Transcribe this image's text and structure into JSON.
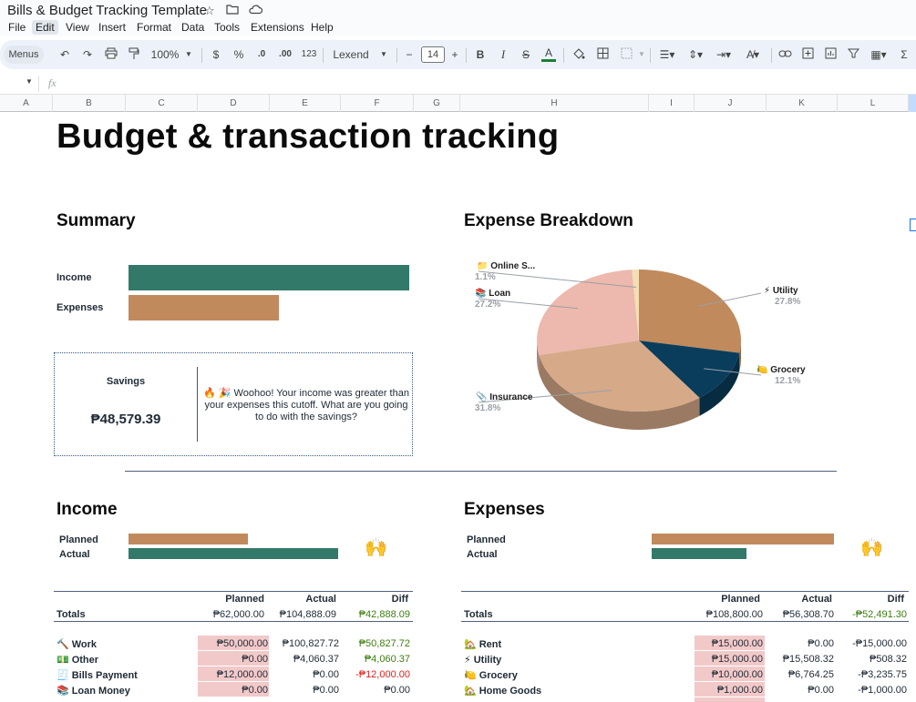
{
  "app": {
    "doc_title": "Bills & Budget Tracking Template",
    "menu": [
      "File",
      "Edit",
      "View",
      "Insert",
      "Format",
      "Data",
      "Tools",
      "Extensions",
      "Help"
    ],
    "toolbar": {
      "menus": "Menus",
      "zoom": "100%",
      "currency": "$",
      "percent": "%",
      "dec_less": ".0",
      "dec_more": ".00",
      "number_format": "123",
      "font": "Lexend",
      "font_size": "14",
      "minus": "−",
      "plus": "+",
      "bold": "B",
      "italic": "I",
      "strike": "S",
      "text_color": "A"
    },
    "formula_bar": {
      "fx": "fx"
    },
    "columns": [
      "A",
      "B",
      "C",
      "D",
      "E",
      "F",
      "G",
      "H",
      "I",
      "J",
      "K",
      "L"
    ]
  },
  "sheet": {
    "title": "Budget & transaction tracking",
    "summary": {
      "heading": "Summary",
      "income_label": "Income",
      "expenses_label": "Expenses",
      "income_fraction": 1.0,
      "expenses_fraction": 0.535
    },
    "savings": {
      "label": "Savings",
      "amount": "₱48,579.39",
      "message_emoji": "🔥 🎉",
      "message": "Woohoo! Your income was greater than your expenses this cutoff. What are you going to do with the savings?"
    },
    "expense_breakdown": {
      "heading": "Expense Breakdown",
      "chart_data": {
        "type": "pie",
        "title": "Expense Breakdown",
        "slices": [
          {
            "name": "Utility",
            "icon": "⚡",
            "pct": "27.8%",
            "value": 27.8,
            "color": "#c08a5c"
          },
          {
            "name": "Grocery",
            "icon": "🍋",
            "pct": "12.1%",
            "value": 12.1,
            "color": "#0a3d5c"
          },
          {
            "name": "Insurance",
            "icon": "📎",
            "pct": "31.8%",
            "value": 31.8,
            "color": "#d6a988"
          },
          {
            "name": "Loan",
            "icon": "📚",
            "pct": "27.2%",
            "value": 27.2,
            "color": "#edb8ad"
          },
          {
            "name": "Online S...",
            "icon": "📁",
            "pct": "1.1%",
            "value": 1.1,
            "color": "#f3dfb5"
          }
        ]
      }
    },
    "income": {
      "heading": "Income",
      "planned_label": "Planned",
      "actual_label": "Actual",
      "planned_fraction": 0.57,
      "actual_fraction": 1.0,
      "emoji": "🙌",
      "columns": [
        "Planned",
        "Actual",
        "Diff"
      ],
      "totals": {
        "label": "Totals",
        "planned": "₱62,000.00",
        "actual": "₱104,888.09",
        "diff": "₱42,888.09"
      },
      "rows": [
        {
          "icon": "🔨",
          "name": "Work",
          "planned": "₱50,000.00",
          "actual": "₱100,827.72",
          "diff": "₱50,827.72",
          "diff_sign": "pos"
        },
        {
          "icon": "💵",
          "name": "Other",
          "planned": "₱0.00",
          "actual": "₱4,060.37",
          "diff": "₱4,060.37",
          "diff_sign": "pos"
        },
        {
          "icon": "🧾",
          "name": "Bills Payment",
          "planned": "₱12,000.00",
          "actual": "₱0.00",
          "diff": "-₱12,000.00",
          "diff_sign": "neg"
        },
        {
          "icon": "📚",
          "name": "Loan Money",
          "planned": "₱0.00",
          "actual": "₱0.00",
          "diff": "₱0.00",
          "diff_sign": "zero"
        }
      ]
    },
    "expenses": {
      "heading": "Expenses",
      "planned_label": "Planned",
      "actual_label": "Actual",
      "planned_fraction": 1.0,
      "actual_fraction": 0.52,
      "emoji": "🙌",
      "columns": [
        "Planned",
        "Actual",
        "Diff"
      ],
      "totals": {
        "label": "Totals",
        "planned": "₱108,800.00",
        "actual": "₱56,308.70",
        "diff": "-₱52,491.30"
      },
      "rows": [
        {
          "icon": "🏡",
          "name": "Rent",
          "planned": "₱15,000.00",
          "actual": "₱0.00",
          "diff": "-₱15,000.00"
        },
        {
          "icon": "⚡",
          "name": "Utility",
          "planned": "₱15,000.00",
          "actual": "₱15,508.32",
          "diff": "₱508.32"
        },
        {
          "icon": "🍋",
          "name": "Grocery",
          "planned": "₱10,000.00",
          "actual": "₱6,764.25",
          "diff": "-₱3,235.75"
        },
        {
          "icon": "🏡",
          "name": "Home Goods",
          "planned": "₱1,000.00",
          "actual": "₱0.00",
          "diff": "-₱1,000.00"
        }
      ]
    }
  }
}
